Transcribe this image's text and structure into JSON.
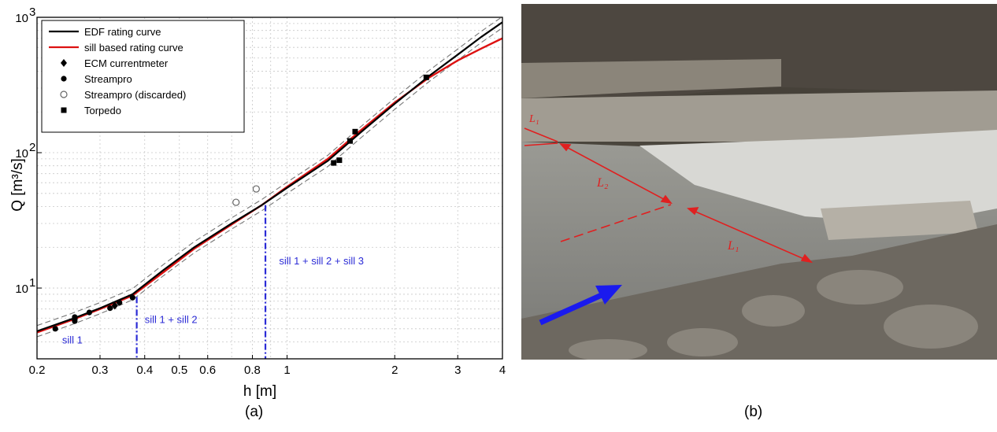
{
  "chart_data": {
    "type": "scatter",
    "xlabel": "h [m]",
    "ylabel": "Q [m³/s]",
    "xscale": "log",
    "yscale": "log",
    "xlim": [
      0.2,
      4
    ],
    "ylim": [
      3,
      1000
    ],
    "grid": true,
    "legend_position": "top-left",
    "x_tick_labels": [
      "0.2",
      "0.3",
      "0.4",
      "0.5",
      "0.6",
      "0.8",
      "1",
      "2",
      "3",
      "4"
    ],
    "x_tick_values": [
      0.2,
      0.3,
      0.4,
      0.5,
      0.6,
      0.8,
      1,
      2,
      3,
      4
    ],
    "y_tick_labels": [
      {
        "base": "10",
        "exp": "1",
        "value": 10
      },
      {
        "base": "10",
        "exp": "2",
        "value": 100
      },
      {
        "base": "10",
        "exp": "3",
        "value": 1000
      }
    ],
    "series": [
      {
        "name": "EDF rating curve",
        "kind": "line",
        "color": "#000000",
        "x": [
          0.2,
          0.25,
          0.3,
          0.37,
          0.45,
          0.55,
          0.7,
          0.85,
          1.0,
          1.3,
          1.6,
          2.0,
          2.5,
          3.0,
          3.5,
          4.0
        ],
        "y": [
          4.8,
          5.9,
          7.1,
          9.0,
          13.5,
          20,
          30,
          41,
          55,
          87,
          140,
          230,
          370,
          530,
          720,
          920
        ]
      },
      {
        "name": "sill based rating curve",
        "kind": "line",
        "color": "#dd1111",
        "x": [
          0.2,
          0.25,
          0.3,
          0.37,
          0.45,
          0.55,
          0.7,
          0.85,
          1.0,
          1.3,
          1.6,
          2.0,
          2.5,
          3.0,
          3.5,
          4.0
        ],
        "y": [
          4.7,
          5.8,
          7.0,
          8.8,
          13.0,
          19.5,
          29.5,
          41,
          56,
          90,
          145,
          235,
          360,
          480,
          590,
          700
        ]
      },
      {
        "name": "ECM currentmeter",
        "kind": "marker",
        "marker": "diamond",
        "x": [
          0.255,
          0.33
        ],
        "y": [
          5.9,
          7.4
        ]
      },
      {
        "name": "Streampro",
        "kind": "marker",
        "marker": "circle-filled",
        "x": [
          0.225,
          0.255,
          0.255,
          0.28,
          0.32,
          0.34,
          0.37
        ],
        "y": [
          5.0,
          5.7,
          6.1,
          6.6,
          7.1,
          7.8,
          8.5
        ]
      },
      {
        "name": "Streampro (discarded)",
        "kind": "marker",
        "marker": "circle-open",
        "x": [
          0.72,
          0.82
        ],
        "y": [
          43,
          54
        ]
      },
      {
        "name": "Torpedo",
        "kind": "marker",
        "marker": "square",
        "x": [
          1.35,
          1.4,
          1.5,
          1.55,
          2.45
        ],
        "y": [
          84,
          88,
          122,
          143,
          360
        ]
      }
    ],
    "confidence_band": {
      "color": "#777777",
      "factor": 1.1
    },
    "thresholds": [
      {
        "x": 0.38,
        "y_top": 8.6,
        "color": "#2b2bd6"
      },
      {
        "x": 0.87,
        "y_top": 41,
        "color": "#2b2bd6"
      }
    ],
    "annotations": [
      {
        "text": "sill 1",
        "x": 0.235,
        "y": 3.9
      },
      {
        "text": "sill 1 + sill 2",
        "x": 0.4,
        "y": 5.5
      },
      {
        "text": "sill 1 + sill 2 + sill 3",
        "x": 0.95,
        "y": 15
      }
    ]
  },
  "photo": {
    "label_L1_upper": "L₁",
    "label_L2": "L₂",
    "label_L1_lower": "L₁",
    "arrow_color": "#1a1aee",
    "line_color": "#e02020"
  },
  "captions": {
    "a": "(a)",
    "b": "(b)"
  }
}
